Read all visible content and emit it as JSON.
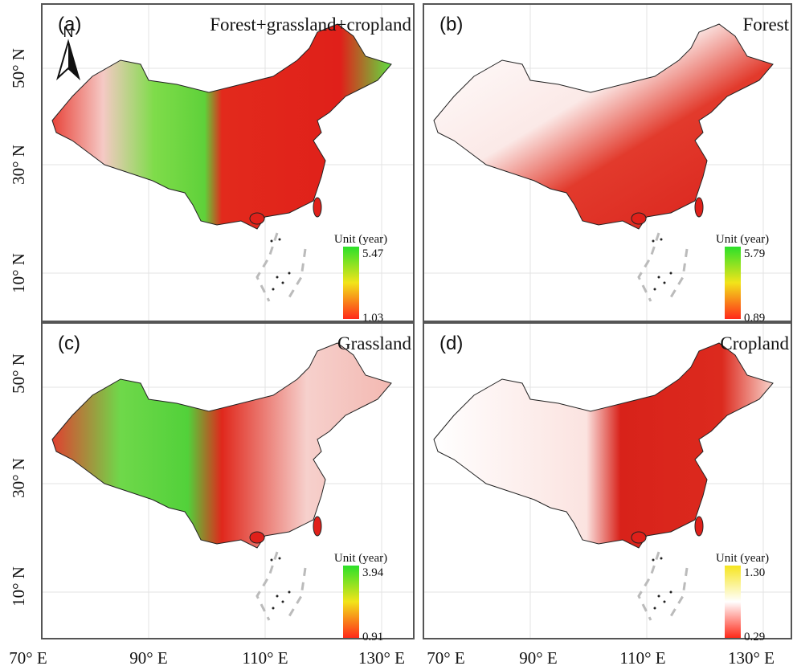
{
  "north": "N",
  "lat_labels": [
    "50° N",
    "30° N",
    "10° N"
  ],
  "lon_labels": [
    "70° E",
    "90° E",
    "110° E",
    "130° E"
  ],
  "panels": [
    {
      "label": "(a)",
      "title": "Forest+grassland+cropland",
      "legend": {
        "unit": "Unit (year)",
        "max": "5.47",
        "min": "1.03"
      }
    },
    {
      "label": "(b)",
      "title": "Forest",
      "legend": {
        "unit": "Unit (year)",
        "max": "5.79",
        "min": "0.89"
      }
    },
    {
      "label": "(c)",
      "title": "Grassland",
      "legend": {
        "unit": "Unit (year)",
        "max": "3.94",
        "min": "0.91"
      }
    },
    {
      "label": "(d)",
      "title": "Cropland",
      "legend": {
        "unit": "Unit (year)",
        "max": "1.30",
        "min": "0.29"
      }
    }
  ]
}
